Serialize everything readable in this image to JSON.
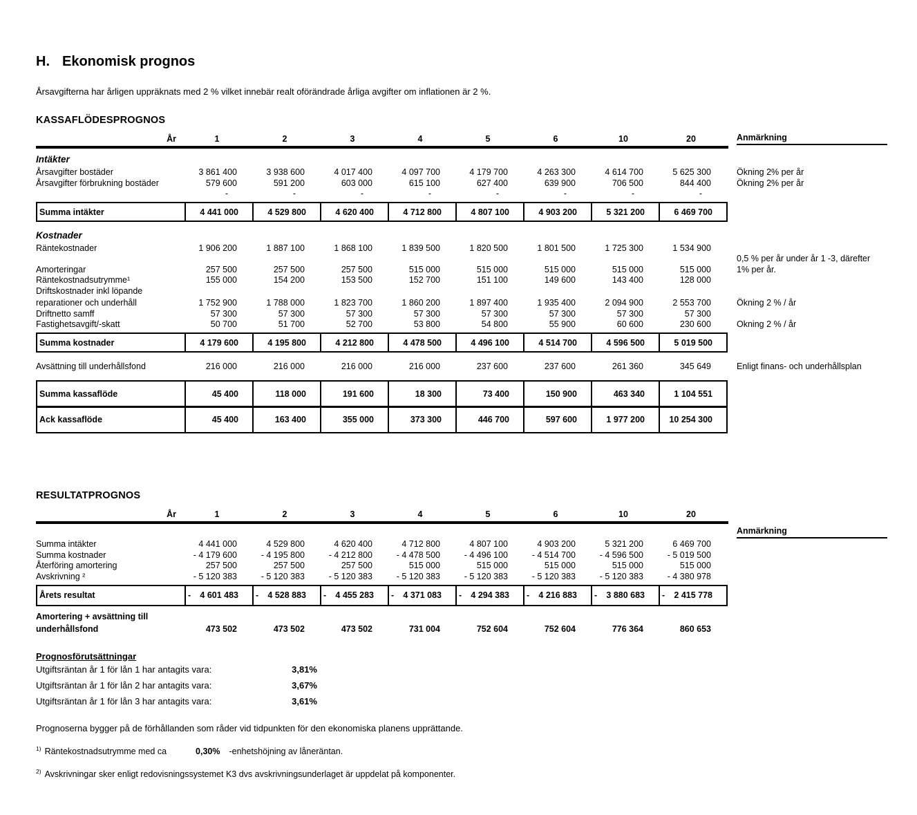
{
  "colors": {
    "text": "#000000",
    "background": "#ffffff",
    "rule": "#000000"
  },
  "page": {
    "title_prefix": "H.",
    "title": "Ekonomisk prognos",
    "intro": "Årsavgifterna har årligen uppräknats med 2 % vilket innebär realt oförändrade årliga avgifter om inflationen är 2 %."
  },
  "cashflow": {
    "heading": "KASSAFLÖDESPROGNOS",
    "year_label": "År",
    "years": [
      "1",
      "2",
      "3",
      "4",
      "5",
      "6",
      "10",
      "20"
    ],
    "anm_label": "Anmärkning",
    "rows": [
      {
        "t": "section",
        "label": "Intäkter"
      },
      {
        "t": "row",
        "label": "Årsavgifter bostäder",
        "values": [
          "3 861 400",
          "3 938 600",
          "4 017 400",
          "4 097 700",
          "4 179 700",
          "4 263 300",
          "4 614 700",
          "5 625 300"
        ],
        "anm": "Ökning 2% per år"
      },
      {
        "t": "row",
        "label": "Årsavgifter förbrukning bostäder",
        "values": [
          "579 600",
          "591 200",
          "603 000",
          "615 100",
          "627 400",
          "639 900",
          "706 500",
          "844 400"
        ],
        "anm": "Ökning 2% per år"
      },
      {
        "t": "row dash",
        "label": "",
        "values": [
          "-",
          "-",
          "-",
          "-",
          "-",
          "-",
          "-",
          "-"
        ],
        "anm": ""
      },
      {
        "t": "sum",
        "label": "Summa intäkter",
        "values": [
          "4 441 000",
          "4 529 800",
          "4 620 400",
          "4 712 800",
          "4 807 100",
          "4 903 200",
          "5 321 200",
          "6 469 700"
        ]
      },
      {
        "t": "section",
        "label": "Kostnader",
        "cls": "mt8"
      },
      {
        "t": "row",
        "label": "Räntekostnader",
        "values": [
          "1 906 200",
          "1 887 100",
          "1 868 100",
          "1 839 500",
          "1 820 500",
          "1 801 500",
          "1 725 300",
          "1 534 900"
        ],
        "anm": ""
      },
      {
        "t": "row",
        "label": "",
        "values": [
          "",
          "",
          "",
          "",
          "",
          "",
          "",
          ""
        ],
        "anm": "0,5 % per år under år 1 -3, därefter"
      },
      {
        "t": "row",
        "label": "Amorteringar",
        "values": [
          "257 500",
          "257 500",
          "257 500",
          "515 000",
          "515 000",
          "515 000",
          "515 000",
          "515 000"
        ],
        "anm": "1% per år."
      },
      {
        "t": "row",
        "label": "Räntekostnadsutrymme¹",
        "values": [
          "155 000",
          "154 200",
          "153 500",
          "152 700",
          "151 100",
          "149 600",
          "143 400",
          "128 000"
        ],
        "anm": ""
      },
      {
        "t": "row",
        "label": "Driftskostnader inkl löpande",
        "values": [],
        "anm": ""
      },
      {
        "t": "row",
        "label": "reparationer och underhåll",
        "values": [
          "1 752 900",
          "1 788 000",
          "1 823 700",
          "1 860 200",
          "1 897 400",
          "1 935 400",
          "2 094 900",
          "2 553 700"
        ],
        "anm": "Ökning 2 % / år",
        "cls": "mt2"
      },
      {
        "t": "row",
        "label": "Driftnetto samff",
        "values": [
          "57 300",
          "57 300",
          "57 300",
          "57 300",
          "57 300",
          "57 300",
          "57 300",
          "57 300"
        ],
        "anm": ""
      },
      {
        "t": "row",
        "label": "Fastighetsavgift/-skatt",
        "values": [
          "50 700",
          "51 700",
          "52 700",
          "53 800",
          "54 800",
          "55 900",
          "60 600",
          "230 600"
        ],
        "anm": "Okning 2 % / år"
      },
      {
        "t": "sum",
        "label": "Summa kostnader",
        "values": [
          "4 179 600",
          "4 195 800",
          "4 212 800",
          "4 478 500",
          "4 496 100",
          "4 514 700",
          "4 596 500",
          "5 019 500"
        ]
      },
      {
        "t": "row",
        "label": "Avsättning till underhållsfond",
        "values": [
          "216 000",
          "216 000",
          "216 000",
          "216 000",
          "237 600",
          "237 600",
          "261 360",
          "345 649"
        ],
        "anm": "Enligt finans- och underhållsplan",
        "cls": "mt12 mb12"
      },
      {
        "t": "sumtall",
        "label": "Summa kassaflöde",
        "values": [
          "45 400",
          "118 000",
          "191 600",
          "18 300",
          "73 400",
          "150 900",
          "463 340",
          "1 104 551"
        ]
      },
      {
        "t": "sumtall",
        "label": "Ack kassaflöde",
        "values": [
          "45 400",
          "163 400",
          "355 000",
          "373 300",
          "446 700",
          "597 600",
          "1 977 200",
          "10 254 300"
        ]
      }
    ]
  },
  "result": {
    "heading": "RESULTATPROGNOS",
    "year_label": "År",
    "years": [
      "1",
      "2",
      "3",
      "4",
      "5",
      "6",
      "10",
      "20"
    ],
    "anm_label": "Anmärkning",
    "rows": [
      {
        "t": "row anmhead",
        "label": "",
        "values": [
          "",
          "",
          "",
          "",
          "",
          "",
          "",
          ""
        ],
        "anm": "Anmärkning"
      },
      {
        "t": "row",
        "label": "Summa intäkter",
        "values": [
          "4 441 000",
          "4 529 800",
          "4 620 400",
          "4 712 800",
          "4 807 100",
          "4 903 200",
          "5 321 200",
          "6 469 700"
        ],
        "anm": ""
      },
      {
        "t": "row",
        "label": "Summa kostnader",
        "values": [
          "- 4 179 600",
          "- 4 195 800",
          "- 4 212 800",
          "- 4 478 500",
          "- 4 496 100",
          "- 4 514 700",
          "- 4 596 500",
          "- 5 019 500"
        ],
        "anm": ""
      },
      {
        "t": "row",
        "label": "Återföring amortering",
        "values": [
          "257 500",
          "257 500",
          "257 500",
          "515 000",
          "515 000",
          "515 000",
          "515 000",
          "515 000"
        ],
        "anm": ""
      },
      {
        "t": "row",
        "label": "Avskrivning ²",
        "values": [
          "- 5 120 383",
          "- 5 120 383",
          "- 5 120 383",
          "- 5 120 383",
          "- 5 120 383",
          "- 5 120 383",
          "- 5 120 383",
          "- 4 380 978"
        ],
        "anm": ""
      },
      {
        "t": "rsum",
        "label": "Årets resultat",
        "values": [
          "- 4 601 483",
          "- 4 528 883",
          "- 4 455 283",
          "- 4 371 083",
          "- 4 294 383",
          "- 4 216 883",
          "- 3 880 683",
          "- 2 415 778"
        ]
      },
      {
        "t": "row boldlabel",
        "label": "Amortering + avsättning till",
        "values": [],
        "anm": "",
        "cls": "mt5"
      },
      {
        "t": "row boldlabel",
        "label": "underhållsfond",
        "values": [
          "473 502",
          "473 502",
          "473 502",
          "731 004",
          "752 604",
          "752 604",
          "776 364",
          "860 653"
        ],
        "anm": "",
        "cls": "mt2"
      }
    ]
  },
  "assumptions": {
    "heading": "Prognosförutsättningar",
    "items": [
      {
        "label": "Utgiftsräntan år 1 för lån 1 har antagits vara:",
        "value": "3,81%"
      },
      {
        "label": "Utgiftsräntan år 1 för lån 2 har antagits vara:",
        "value": "3,67%"
      },
      {
        "label": "Utgiftsräntan år 1 för lån 3 har antagits vara:",
        "value": "3,61%"
      }
    ]
  },
  "notes": {
    "disclaimer": "Prognoserna bygger på de förhållanden som råder vid tidpunkten för den ekonomiska planens upprättande.",
    "footnote1": {
      "sup": "1)",
      "pre": "Räntekostnadsutrymme med ca",
      "value": "0,30%",
      "post": "-enhetshöjning av låneräntan."
    },
    "footnote2": {
      "sup": "2)",
      "text": "Avskrivningar sker enligt redovisningssystemet K3 dvs avskrivningsunderlaget är uppdelat på komponenter."
    }
  }
}
